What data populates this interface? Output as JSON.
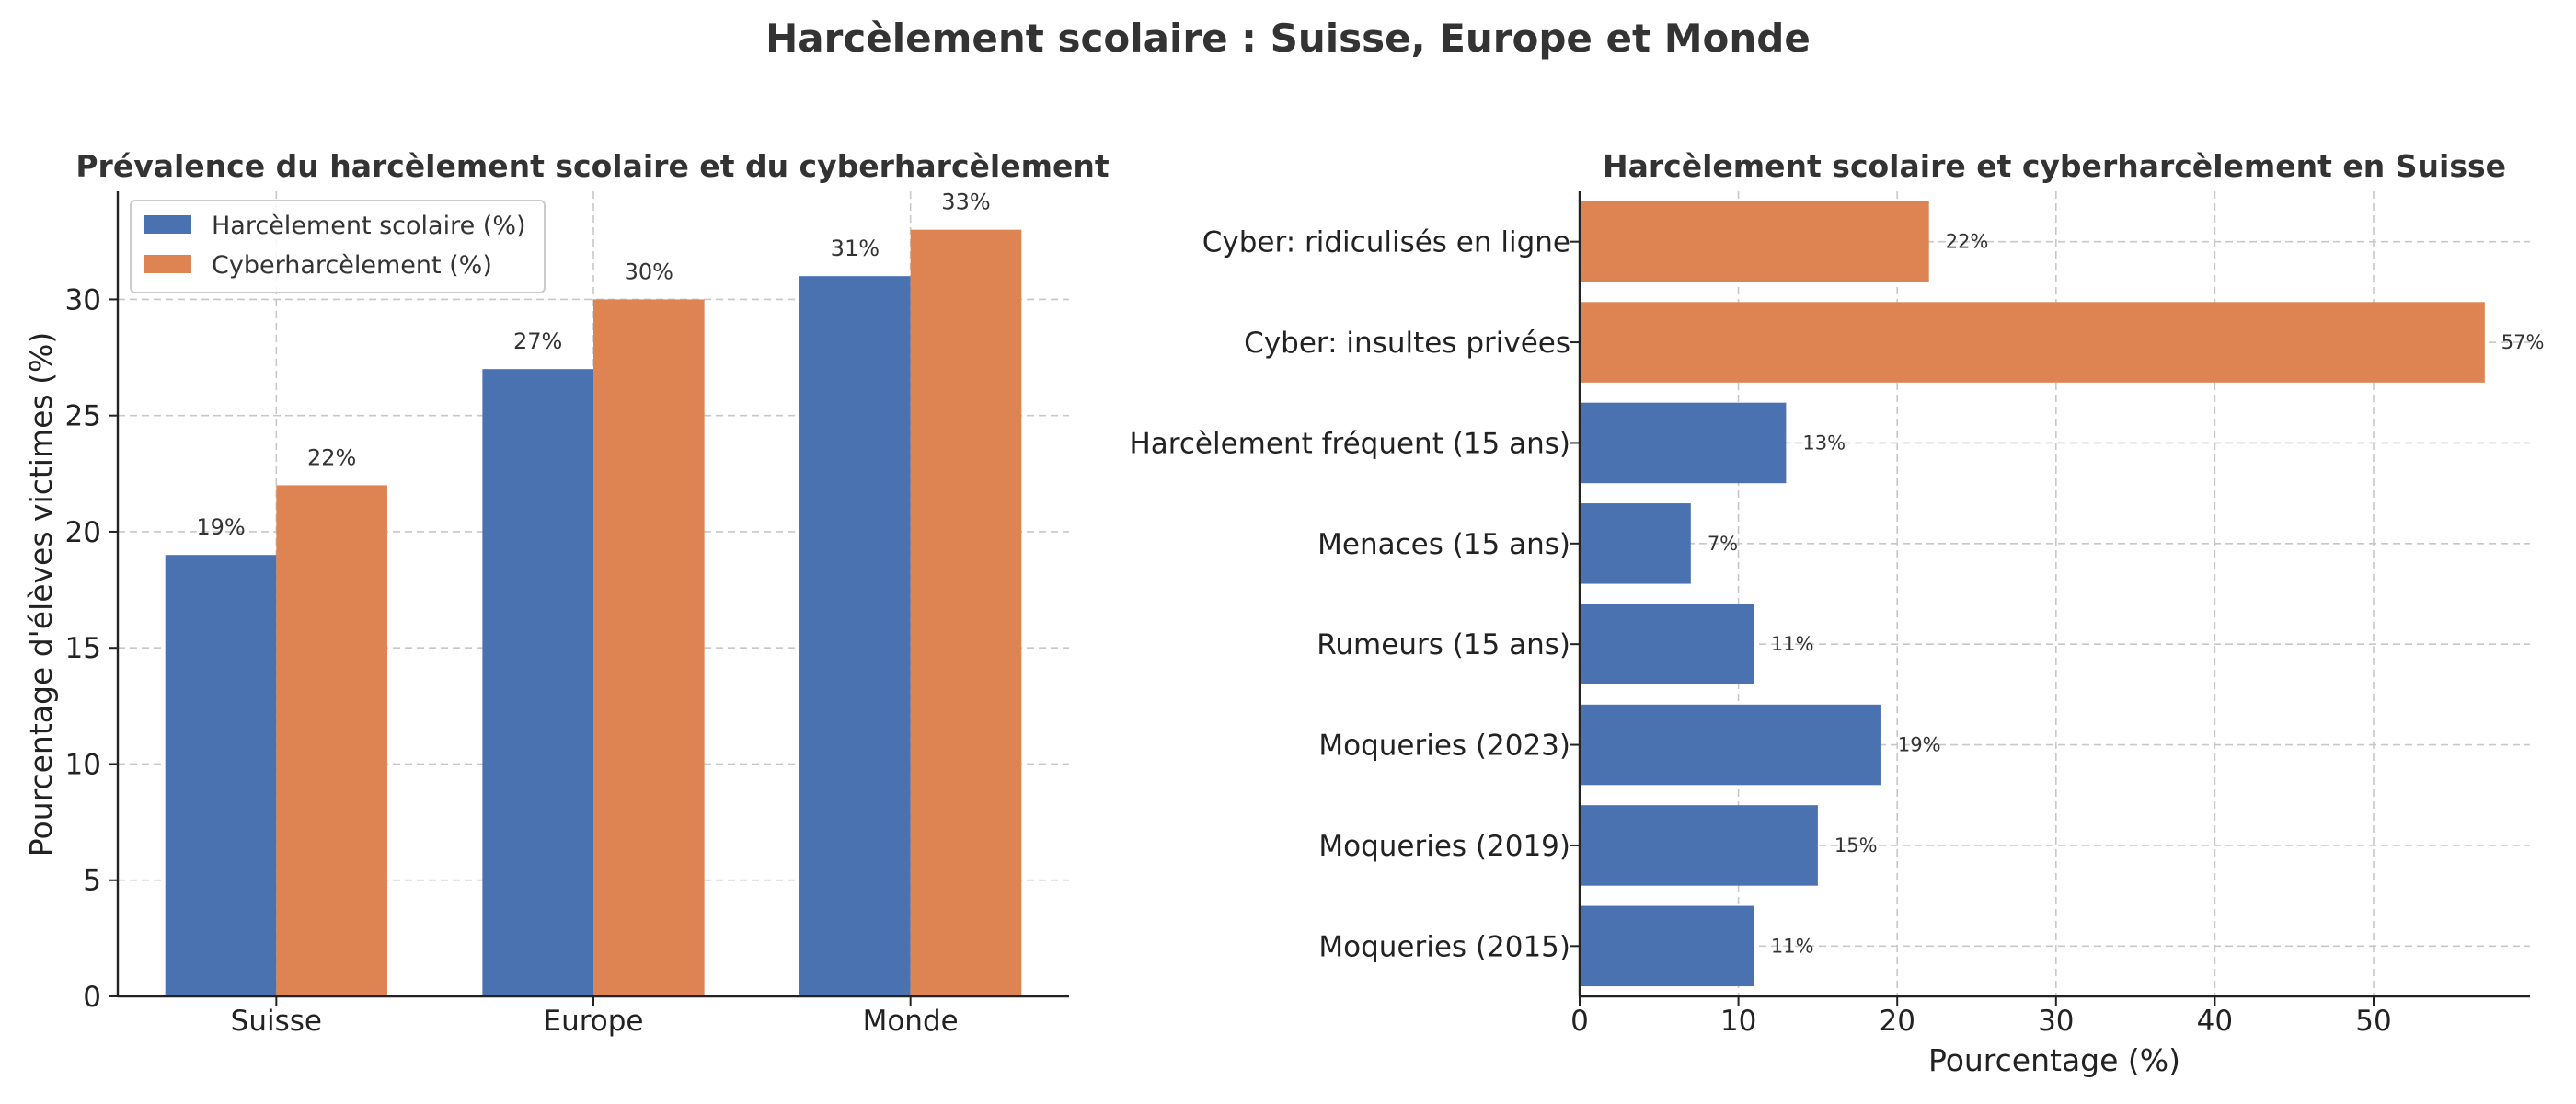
{
  "figure": {
    "title": "Harcèlement scolaire : Suisse, Europe et Monde"
  },
  "colors": {
    "blue": "#4a72b0",
    "orange": "#dd8452"
  },
  "chart_data": [
    {
      "type": "bar",
      "title": "Prévalence du harcèlement scolaire et du cyberharcèlement",
      "xlabel": "",
      "ylabel": "Pourcentage d'élèves victimes (%)",
      "categories": [
        "Suisse",
        "Europe",
        "Monde"
      ],
      "series": [
        {
          "name": "Harcèlement scolaire (%)",
          "values": [
            19,
            27,
            31
          ],
          "color": "#4a72b0"
        },
        {
          "name": "Cyberharcèlement (%)",
          "values": [
            22,
            30,
            33
          ],
          "color": "#dd8452"
        }
      ],
      "data_labels": [
        [
          "19%",
          "27%",
          "31%"
        ],
        [
          "22%",
          "30%",
          "33%"
        ]
      ],
      "ylim": [
        0,
        34.65
      ],
      "yticks": [
        0,
        5,
        10,
        15,
        20,
        25,
        30
      ],
      "grid": true,
      "legend": "top-left"
    },
    {
      "type": "bar",
      "orientation": "horizontal",
      "title": "Harcèlement scolaire et cyberharcèlement en Suisse",
      "xlabel": "Pourcentage (%)",
      "ylabel": "",
      "categories": [
        "Moqueries (2015)",
        "Moqueries (2019)",
        "Moqueries (2023)",
        "Rumeurs (15 ans)",
        "Menaces (15 ans)",
        "Harcèlement fréquent (15 ans)",
        "Cyber: insultes privées",
        "Cyber: ridiculisés en ligne"
      ],
      "values": [
        11,
        15,
        19,
        11,
        7,
        13,
        57,
        22
      ],
      "bar_colors": [
        "#4a72b0",
        "#4a72b0",
        "#4a72b0",
        "#4a72b0",
        "#4a72b0",
        "#4a72b0",
        "#dd8452",
        "#dd8452"
      ],
      "data_labels": [
        "11%",
        "15%",
        "19%",
        "11%",
        "7%",
        "13%",
        "57%",
        "22%"
      ],
      "xlim": [
        0,
        59.85
      ],
      "xticks": [
        0,
        10,
        20,
        30,
        40,
        50
      ],
      "grid": true
    }
  ]
}
